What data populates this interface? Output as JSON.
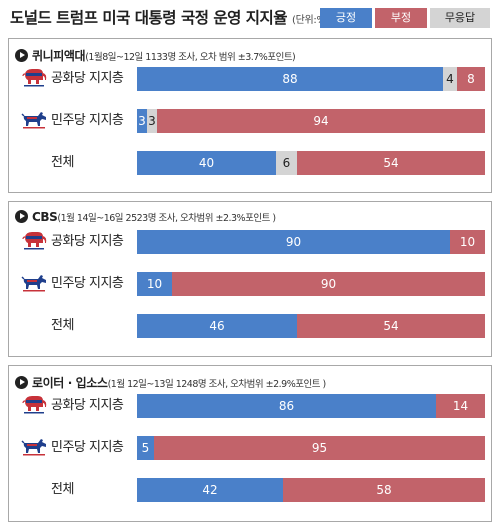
{
  "title": "도널드 트럼프 미국 대통령 국정 운영 지지율",
  "unit": "(단위:%)",
  "colors": {
    "positive": "#4a80c9",
    "negative": "#c2636a",
    "neutral": "#d4d4d4"
  },
  "legend": [
    "긍정",
    "부정",
    "무응답"
  ],
  "chart_data": [
    {
      "type": "bar",
      "source": "퀴니피액대",
      "meta": "(1월8일~12일 1133명 조사,  오차 범위 ±3.7%포인트)",
      "categories": [
        "공화당 지지층",
        "민주당 지지층",
        "전체"
      ],
      "icons": [
        "elephant-icon",
        "donkey-icon",
        ""
      ],
      "series": [
        {
          "name": "긍정",
          "values": [
            88,
            3,
            40
          ]
        },
        {
          "name": "부정",
          "values": [
            8,
            94,
            54
          ]
        },
        {
          "name": "무응답",
          "values": [
            4,
            3,
            6
          ]
        }
      ]
    },
    {
      "type": "bar",
      "source": "CBS",
      "meta": "(1월 14일~16일 2523명 조사, 오차범위 ±2.3%포인트 )",
      "categories": [
        "공화당 지지층",
        "민주당 지지층",
        "전체"
      ],
      "icons": [
        "elephant-icon",
        "donkey-icon",
        ""
      ],
      "series": [
        {
          "name": "긍정",
          "values": [
            90,
            10,
            46
          ]
        },
        {
          "name": "부정",
          "values": [
            10,
            90,
            54
          ]
        },
        {
          "name": "무응답",
          "values": [
            0,
            0,
            0
          ]
        }
      ]
    },
    {
      "type": "bar",
      "source": "로이터 · 입소스",
      "meta": "(1월 12일~13일 1248명 조사, 오차범위 ±2.9%포인트 )",
      "categories": [
        "공화당 지지층",
        "민주당 지지층",
        "전체"
      ],
      "icons": [
        "elephant-icon",
        "donkey-icon",
        ""
      ],
      "series": [
        {
          "name": "긍정",
          "values": [
            86,
            5,
            42
          ]
        },
        {
          "name": "부정",
          "values": [
            14,
            95,
            58
          ]
        },
        {
          "name": "무응답",
          "values": [
            0,
            0,
            0
          ]
        }
      ]
    }
  ]
}
